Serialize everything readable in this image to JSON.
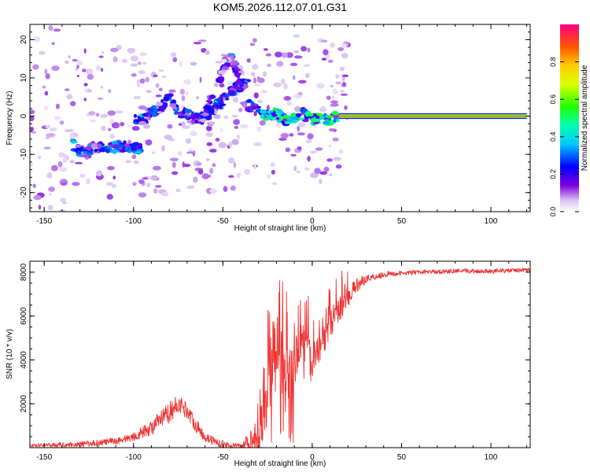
{
  "title": "KOM5.2026.112.07.01.G31",
  "chart_data": [
    {
      "type": "heatmap",
      "name": "spectrogram",
      "xlabel": "Height of straight line (km)",
      "ylabel": "Frequency (Hz)",
      "xlim": [
        -158,
        122
      ],
      "ylim": [
        -25,
        24
      ],
      "xticks": [
        -150,
        -100,
        -50,
        0,
        50,
        100
      ],
      "yticks": [
        -20,
        -10,
        0,
        10,
        20
      ],
      "colorbar": {
        "label": "Normalized spectral amplitude",
        "range": [
          0,
          1
        ],
        "ticks": [
          "0.0",
          "0.2",
          "0.4",
          "0.6",
          "0.8"
        ]
      },
      "ridges": [
        {
          "x": [
            -135,
            -128,
            -122,
            -116,
            -110,
            -104,
            -96
          ],
          "y": [
            -7,
            -10,
            -8,
            -8.5,
            -8,
            -8,
            -8.5
          ],
          "amp": 0.28
        },
        {
          "x": [
            -100,
            -95,
            -90,
            -85,
            -80,
            -75,
            -70,
            -65,
            -60,
            -55,
            -50,
            -45,
            -40
          ],
          "y": [
            -1,
            -1,
            1,
            2,
            5,
            1,
            0.5,
            -1,
            0,
            2,
            4,
            7,
            8
          ],
          "amp": 0.25
        },
        {
          "x": [
            -60,
            -55,
            -50,
            -45,
            -40,
            -36
          ],
          "y": [
            1,
            6,
            12,
            16,
            8,
            9
          ],
          "amp": 0.22
        },
        {
          "x": [
            -36,
            -30,
            -25,
            -20,
            -15,
            -10,
            -5,
            0,
            5,
            10,
            15
          ],
          "y": [
            3,
            1,
            0,
            0.5,
            -1,
            -0.5,
            0.5,
            -1,
            -0.5,
            -1,
            0
          ],
          "amp": 0.45
        }
      ],
      "carrier": {
        "x": [
          15,
          120
        ],
        "y": 0,
        "amp": 0.9
      }
    },
    {
      "type": "line",
      "name": "snr",
      "xlabel": "Height of straight line (km)",
      "ylabel": "SNR (10 * v/v)",
      "xlim": [
        -158,
        122
      ],
      "ylim": [
        0,
        8500
      ],
      "xticks": [
        -150,
        -100,
        -50,
        0,
        50,
        100
      ],
      "yticks": [
        2000,
        4000,
        6000,
        8000
      ],
      "series_color": "#ee3333",
      "envelope": {
        "x": [
          -158,
          -130,
          -110,
          -100,
          -90,
          -80,
          -75,
          -70,
          -65,
          -60,
          -55,
          -50,
          -45,
          -40,
          -35,
          -30,
          -28,
          -25,
          -22,
          -20,
          -18,
          -15,
          -12,
          -10,
          -8,
          -5,
          -3,
          0,
          3,
          6,
          10,
          15,
          20,
          25,
          30,
          40,
          50,
          60,
          80,
          100,
          122
        ],
        "y": [
          100,
          150,
          300,
          500,
          900,
          1600,
          2000,
          1700,
          1000,
          500,
          300,
          150,
          100,
          100,
          120,
          300,
          1200,
          2500,
          4500,
          3500,
          4200,
          3000,
          3800,
          3300,
          4700,
          4200,
          4400,
          3800,
          4400,
          5000,
          5600,
          6300,
          6900,
          7400,
          7700,
          7900,
          7950,
          8000,
          8050,
          8050,
          8100
        ]
      },
      "noise_amp": {
        "x": [
          -158,
          -100,
          -80,
          -60,
          -40,
          -30,
          -20,
          0,
          20,
          30,
          50,
          122
        ],
        "y": [
          60,
          200,
          500,
          250,
          80,
          1200,
          1800,
          900,
          500,
          200,
          100,
          100
        ]
      }
    }
  ]
}
